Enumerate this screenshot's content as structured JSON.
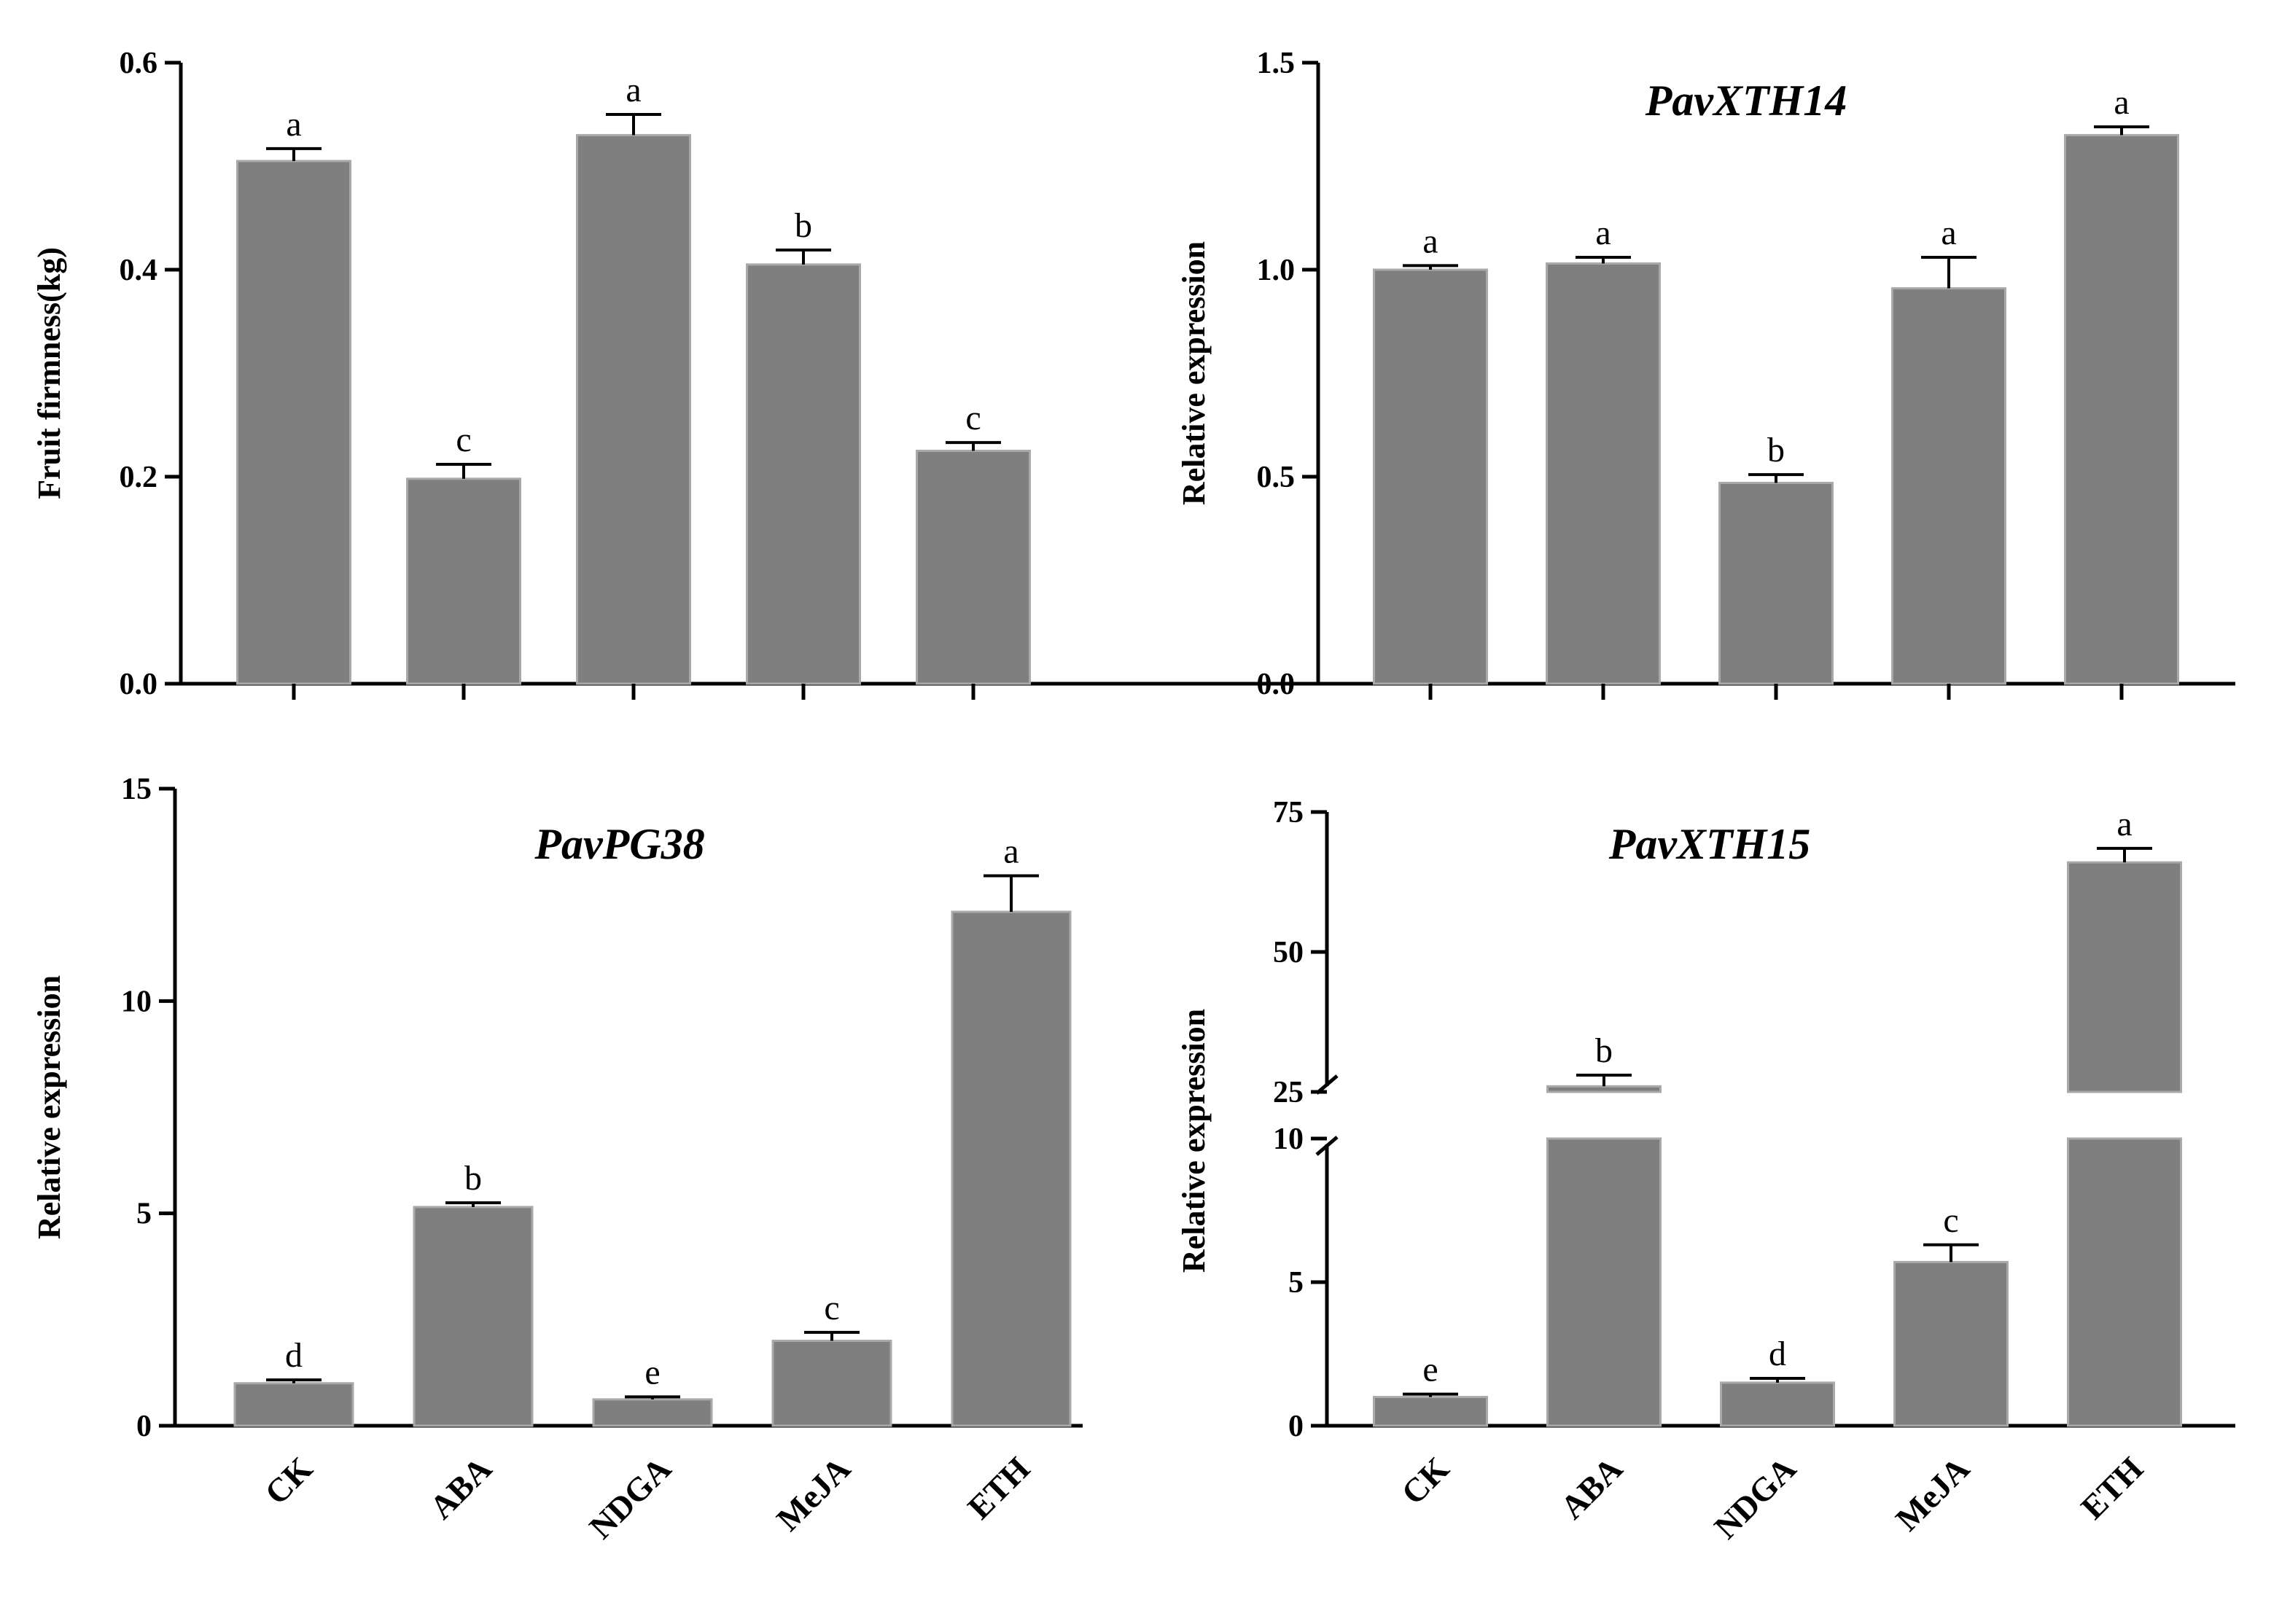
{
  "chart_data": [
    {
      "type": "bar",
      "title": "",
      "ylabel": "Fruit firmness(kg)",
      "categories": [
        "CK",
        "ABA",
        "NDGA",
        "MeJA",
        "ETH"
      ],
      "values": [
        0.505,
        0.198,
        0.53,
        0.405,
        0.225
      ],
      "errors": [
        0.012,
        0.014,
        0.02,
        0.014,
        0.008
      ],
      "sig": [
        "a",
        "c",
        "a",
        "b",
        "c"
      ],
      "ylim": [
        0,
        0.6
      ],
      "yticks": [
        "0.0",
        "0.2",
        "0.4",
        "0.6"
      ],
      "color": "#7f7f7f"
    },
    {
      "type": "bar",
      "title": "PavXTH14",
      "ylabel": "Relative expression",
      "categories": [
        "CK",
        "ABA",
        "NDGA",
        "MeJA",
        "ETH"
      ],
      "values": [
        1.0,
        1.015,
        0.485,
        0.955,
        1.325
      ],
      "errors": [
        0.01,
        0.015,
        0.02,
        0.075,
        0.02
      ],
      "sig": [
        "a",
        "a",
        "b",
        "a",
        "a"
      ],
      "ylim": [
        0,
        1.5
      ],
      "yticks": [
        "0.0",
        "0.5",
        "1.0",
        "1.5"
      ],
      "color": "#7f7f7f"
    },
    {
      "type": "bar",
      "title": "PavPG38",
      "ylabel": "Relative expression",
      "categories": [
        "CK",
        "ABA",
        "NDGA",
        "MeJA",
        "ETH"
      ],
      "values": [
        1.0,
        5.15,
        0.62,
        2.0,
        12.1
      ],
      "errors": [
        0.08,
        0.1,
        0.06,
        0.2,
        0.85
      ],
      "sig": [
        "d",
        "b",
        "e",
        "c",
        "a"
      ],
      "ylim": [
        0,
        15
      ],
      "yticks": [
        "0",
        "5",
        "10",
        "15"
      ],
      "color": "#7f7f7f"
    },
    {
      "type": "bar",
      "title": "PavXTH15",
      "ylabel": "Relative expression",
      "categories": [
        "CK",
        "ABA",
        "NDGA",
        "MeJA",
        "ETH"
      ],
      "values": [
        1.0,
        26.0,
        1.5,
        5.7,
        66.0
      ],
      "errors": [
        0.1,
        2.0,
        0.15,
        0.6,
        2.5
      ],
      "sig": [
        "e",
        "b",
        "d",
        "c",
        "a"
      ],
      "ylim": [
        0,
        75
      ],
      "axis_break": [
        10,
        25
      ],
      "yticks": [
        "0",
        "5",
        "10",
        "25",
        "50",
        "75"
      ],
      "color": "#7f7f7f"
    }
  ]
}
